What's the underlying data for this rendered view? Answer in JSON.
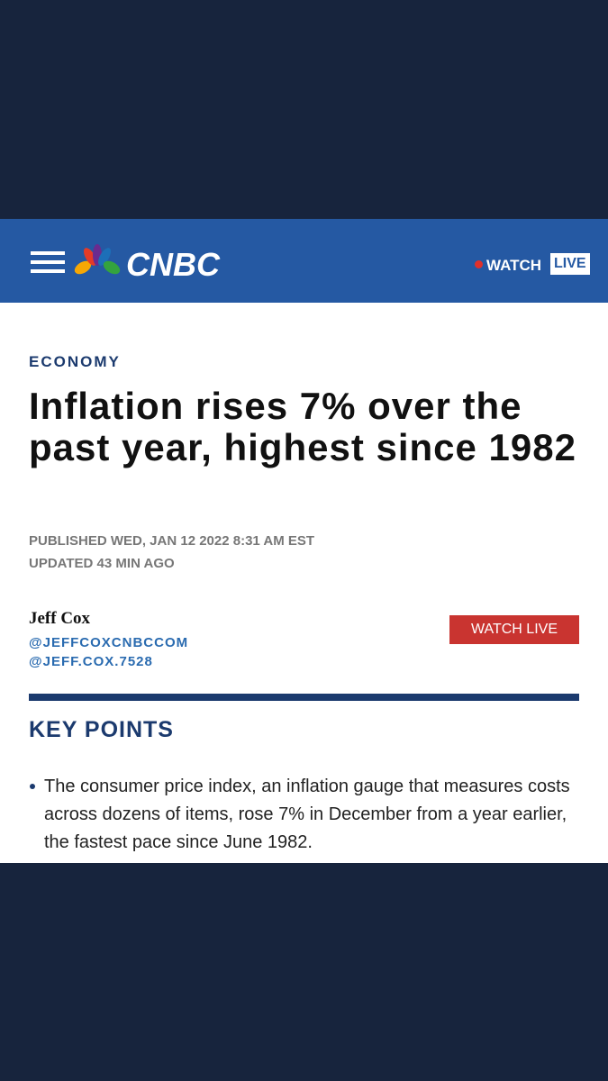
{
  "header": {
    "logo": "CNBC",
    "watch": "WATCH",
    "live": "LIVE"
  },
  "article": {
    "section": "ECONOMY",
    "title": "Inflation rises 7% over the past year, highest since 1982",
    "published": "PUBLISHED WED, JAN 12 2022 8:31 AM EST",
    "updated": "UPDATED 43 MIN AGO",
    "author": "Jeff Cox",
    "handles": [
      "@JEFFCOXCNBCCOM",
      "@JEFF.COX.7528"
    ],
    "watch_live": "WATCH LIVE",
    "key_points_title": "KEY POINTS",
    "key_points": [
      "The consumer price index, an inflation gauge that measures costs across dozens of items, rose 7% in December from a year earlier, the fastest pace since June 1982."
    ]
  }
}
